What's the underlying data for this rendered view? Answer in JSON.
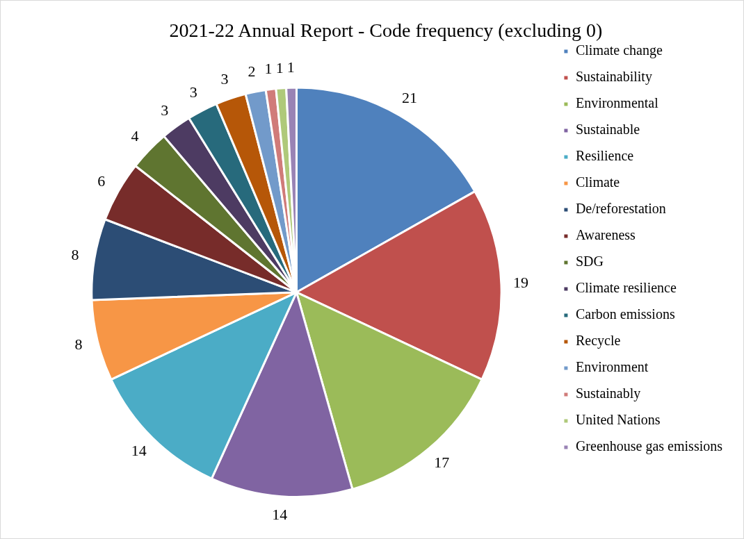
{
  "chart_data": {
    "type": "pie",
    "title": "2021-22 Annual Report - Code frequency (excluding 0)",
    "categories": [
      "Climate change",
      "Sustainability",
      "Environmental",
      "Sustainable",
      "Resilience",
      "Climate",
      "De/reforestation",
      "Awareness",
      "SDG",
      "Climate resilience",
      "Carbon emissions",
      "Recycle",
      "Environment",
      "Sustainably",
      "United Nations",
      "Greenhouse gas emissions"
    ],
    "values": [
      21,
      19,
      17,
      14,
      14,
      8,
      8,
      6,
      4,
      3,
      3,
      3,
      2,
      1,
      1,
      1
    ],
    "colors": [
      "#4f81bd",
      "#c0504d",
      "#9bbb59",
      "#8064a2",
      "#4bacc6",
      "#f79646",
      "#2c4d75",
      "#772c2a",
      "#5f7530",
      "#4d3b62",
      "#276a7c",
      "#b65708",
      "#729aca",
      "#d07b79",
      "#afc97a",
      "#9983b5"
    ],
    "data_labels": true,
    "legend": "right"
  }
}
